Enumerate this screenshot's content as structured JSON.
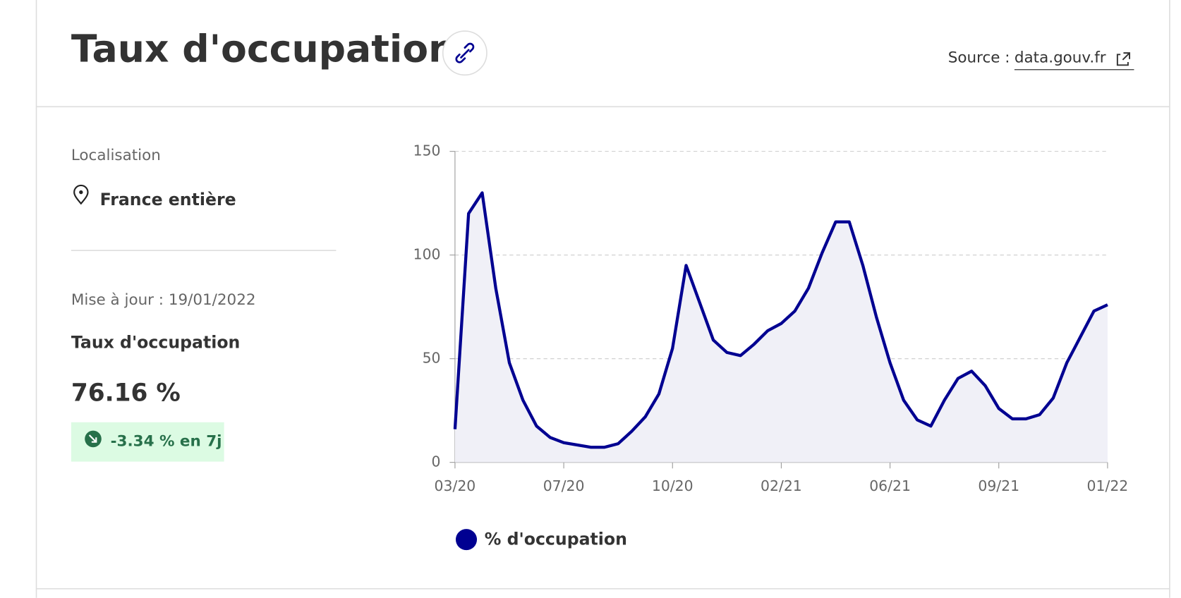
{
  "header": {
    "title": "Taux d'occupation",
    "source_label": "Source :",
    "source_link": "data.gouv.fr"
  },
  "panel": {
    "location_label": "Localisation",
    "location": "France entière",
    "updated": "Mise à jour : 19/01/2022",
    "indicator": "Taux d'occupation",
    "value": "76.16 %",
    "change": "-3.34 % en 7j"
  },
  "chart_data": {
    "type": "line",
    "categories": [
      "03/20",
      null,
      null,
      null,
      null,
      null,
      null,
      null,
      "07/20",
      null,
      null,
      null,
      null,
      null,
      null,
      null,
      "10/20",
      null,
      null,
      null,
      null,
      null,
      null,
      null,
      "02/21",
      null,
      null,
      null,
      null,
      null,
      null,
      null,
      "06/21",
      null,
      null,
      null,
      null,
      null,
      null,
      null,
      "09/21",
      null,
      null,
      null,
      null,
      null,
      null,
      null,
      "01/22"
    ],
    "series": [
      {
        "name": "% d'occupation",
        "color": "#000091",
        "area_color": "#f0f0f7",
        "values": [
          16,
          120,
          130,
          84,
          48,
          30,
          17.5,
          12,
          9.5,
          8.4,
          7.3,
          7.3,
          9,
          15,
          22,
          33,
          55,
          95,
          77,
          59,
          53,
          51.5,
          57,
          63.5,
          67,
          73,
          84,
          101,
          116,
          116,
          95,
          70,
          48,
          30,
          20.5,
          17.5,
          30,
          40.5,
          44,
          37,
          26,
          21,
          21,
          23,
          31,
          48,
          60.5,
          73,
          76
        ]
      }
    ],
    "ylim": [
      0,
      150
    ],
    "yticks": [
      0,
      50,
      100,
      150
    ],
    "grid": true
  }
}
